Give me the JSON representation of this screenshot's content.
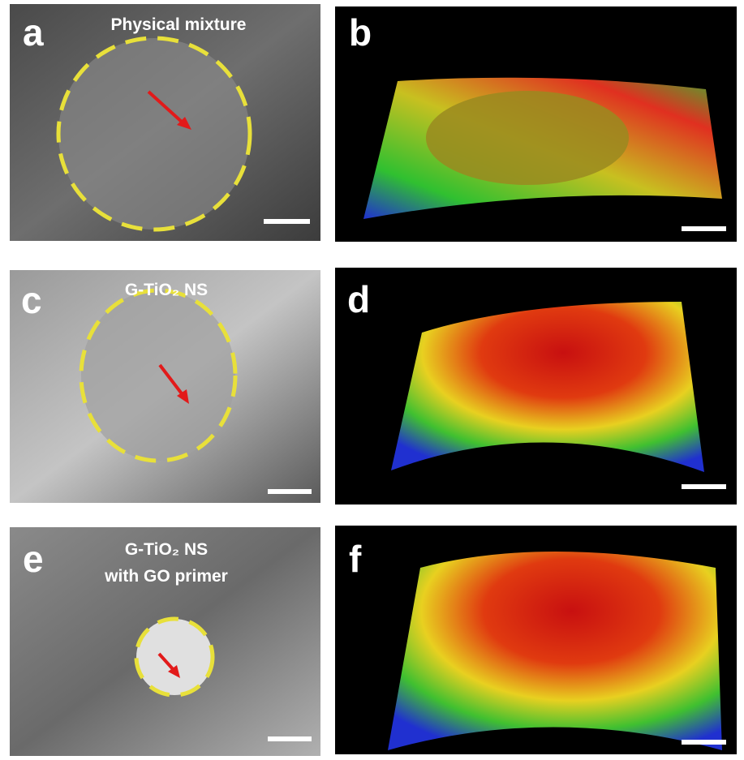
{
  "panels": [
    {
      "letter": "a",
      "caption": [
        "Physical mixture"
      ]
    },
    {
      "letter": "b"
    },
    {
      "letter": "c",
      "caption": [
        "G-TiO₂ NS"
      ]
    },
    {
      "letter": "d"
    },
    {
      "letter": "e",
      "caption": [
        "G-TiO₂ NS",
        "with GO primer"
      ]
    },
    {
      "letter": "f"
    }
  ]
}
